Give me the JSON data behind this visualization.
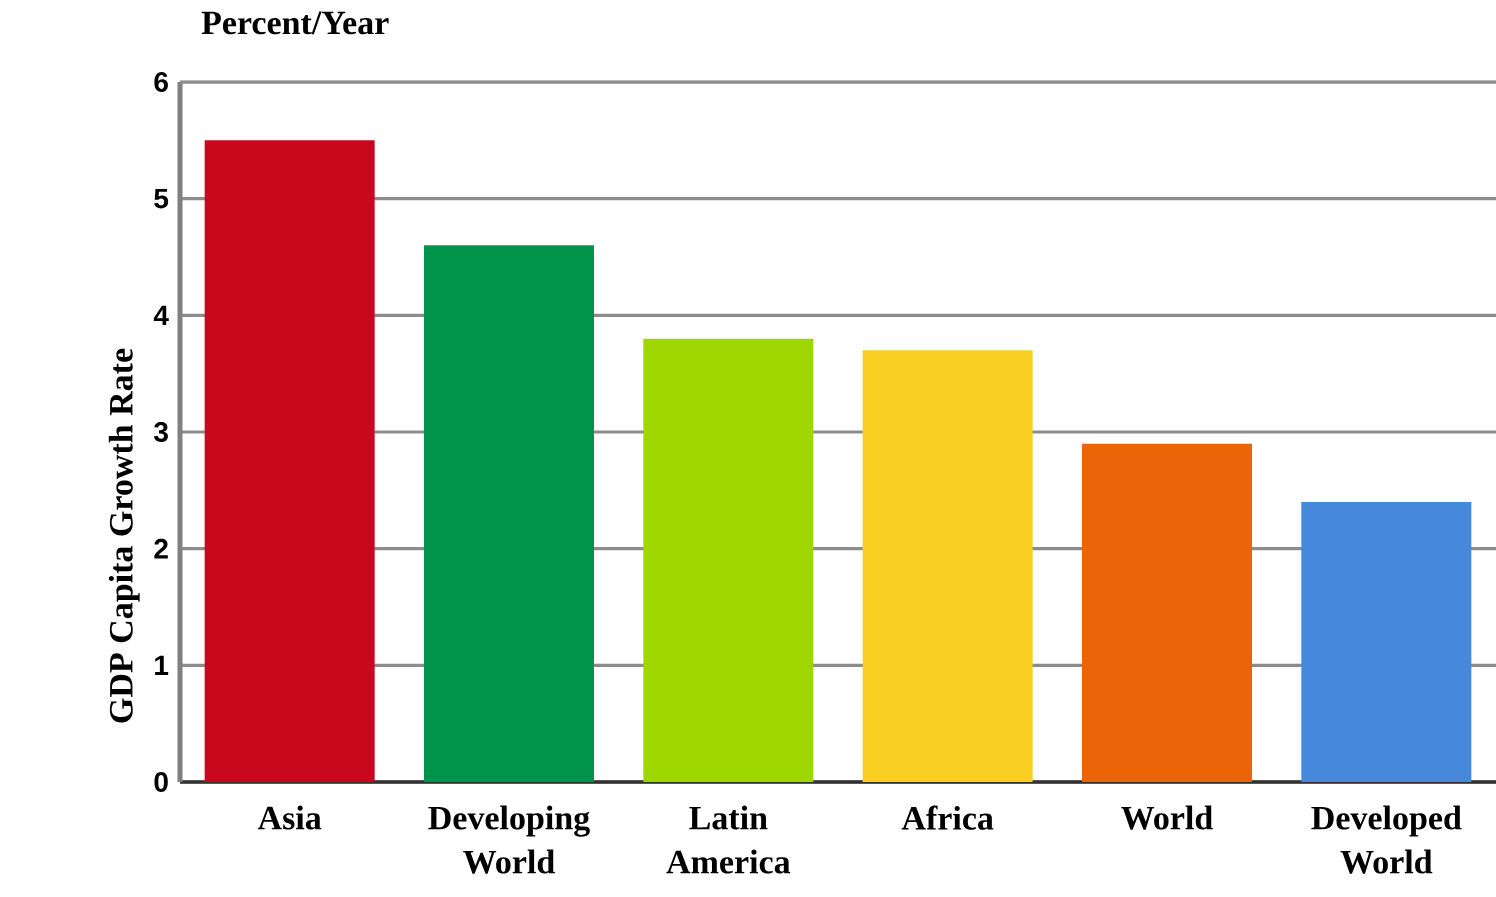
{
  "chart_data": {
    "type": "bar",
    "title": "Percent/Year",
    "ylabel": "GDP Capita Growth Rate",
    "categories": [
      "Asia",
      "Developing World",
      "Latin America",
      "Africa",
      "World",
      "Developed World"
    ],
    "values": [
      5.5,
      4.6,
      3.8,
      3.7,
      2.9,
      2.4
    ],
    "colors": [
      "#c8081c",
      "#00944a",
      "#9ed600",
      "#f8ce22",
      "#ec6408",
      "#4688dc"
    ],
    "ylim": [
      0,
      6
    ],
    "yticks": [
      0,
      1,
      2,
      3,
      4,
      5,
      6
    ],
    "grid": "y"
  }
}
